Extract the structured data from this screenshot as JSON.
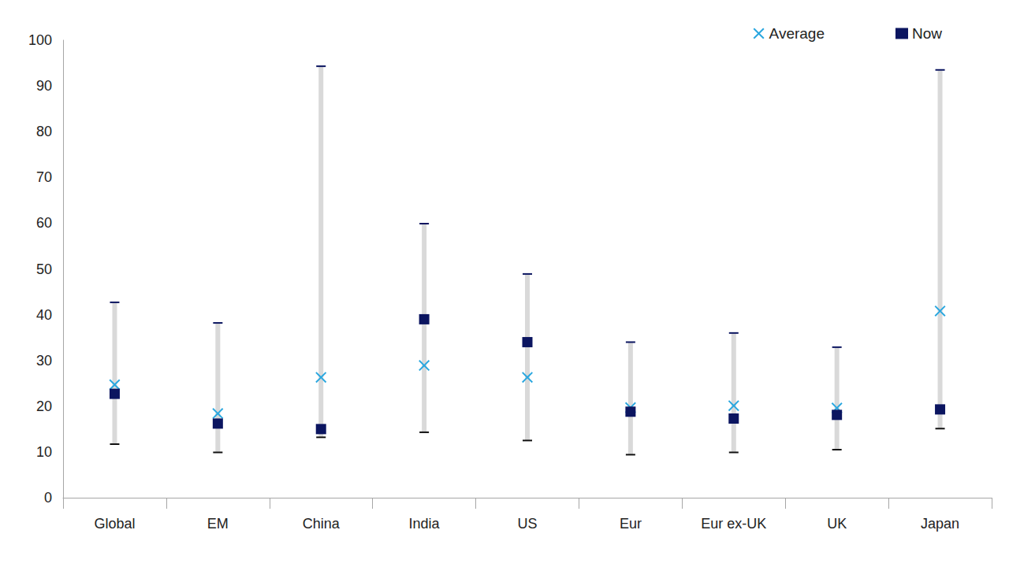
{
  "chart_data": {
    "type": "scatter",
    "categories": [
      "Global",
      "EM",
      "China",
      "India",
      "US",
      "Eur",
      "Eur ex-UK",
      "UK",
      "Japan"
    ],
    "range_low": [
      11.7,
      9.9,
      13.2,
      14.3,
      12.5,
      9.4,
      9.9,
      10.5,
      15.1
    ],
    "range_high": [
      42.7,
      38.2,
      94.3,
      59.9,
      48.9,
      34.0,
      36.0,
      32.9,
      93.5
    ],
    "series": [
      {
        "name": "Average",
        "color": "#2aa7df",
        "marker": "x",
        "values": [
          24.7,
          18.4,
          26.3,
          28.9,
          26.3,
          19.7,
          20.1,
          19.6,
          40.8
        ]
      },
      {
        "name": "Now",
        "color": "#0b1560",
        "marker": "square",
        "values": [
          22.7,
          16.2,
          15.0,
          39.0,
          34.0,
          18.8,
          17.3,
          18.1,
          19.3
        ]
      }
    ],
    "ylim": [
      0,
      100
    ],
    "yticks": [
      0,
      10,
      20,
      30,
      40,
      50,
      60,
      70,
      80,
      90,
      100
    ],
    "grid": false,
    "legend": "top-right"
  }
}
